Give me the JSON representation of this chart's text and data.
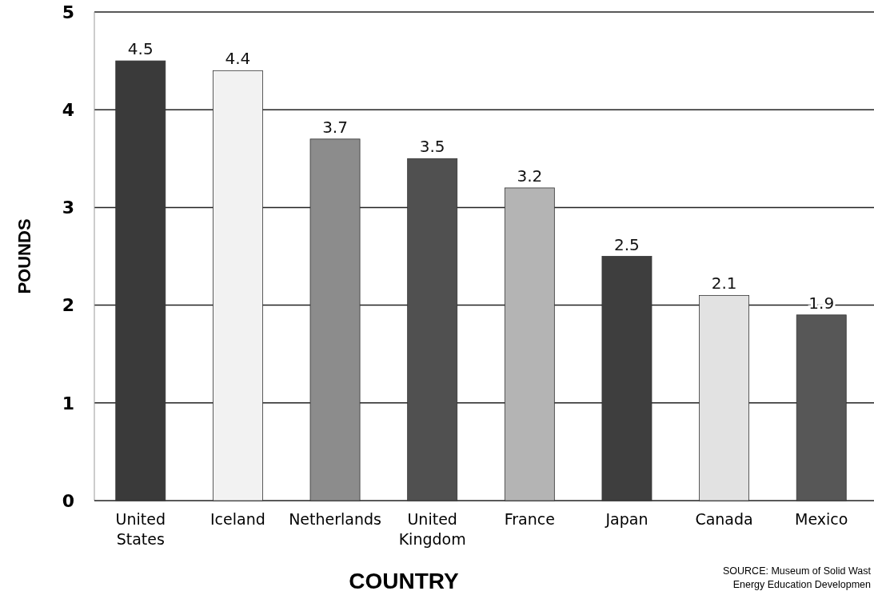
{
  "chart_data": {
    "type": "bar",
    "xlabel": "COUNTRY",
    "ylabel": "POUNDS",
    "categories": [
      "United States",
      "Iceland",
      "Netherlands",
      "United Kingdom",
      "France",
      "Japan",
      "Canada",
      "Mexico"
    ],
    "values": [
      4.5,
      4.4,
      3.7,
      3.5,
      3.2,
      2.5,
      2.1,
      1.9
    ],
    "colors": [
      "#3a3a3a",
      "#f2f2f2",
      "#8c8c8c",
      "#505050",
      "#b4b4b4",
      "#3e3e3e",
      "#e2e2e2",
      "#575757"
    ],
    "ylim": [
      0,
      5
    ],
    "yticks": [
      0,
      1,
      2,
      3,
      4,
      5
    ],
    "grid": "y",
    "data_labels": true,
    "annotations": [
      "SOURCE: Museum of Solid Wast",
      "Energy Education Developmen"
    ]
  }
}
